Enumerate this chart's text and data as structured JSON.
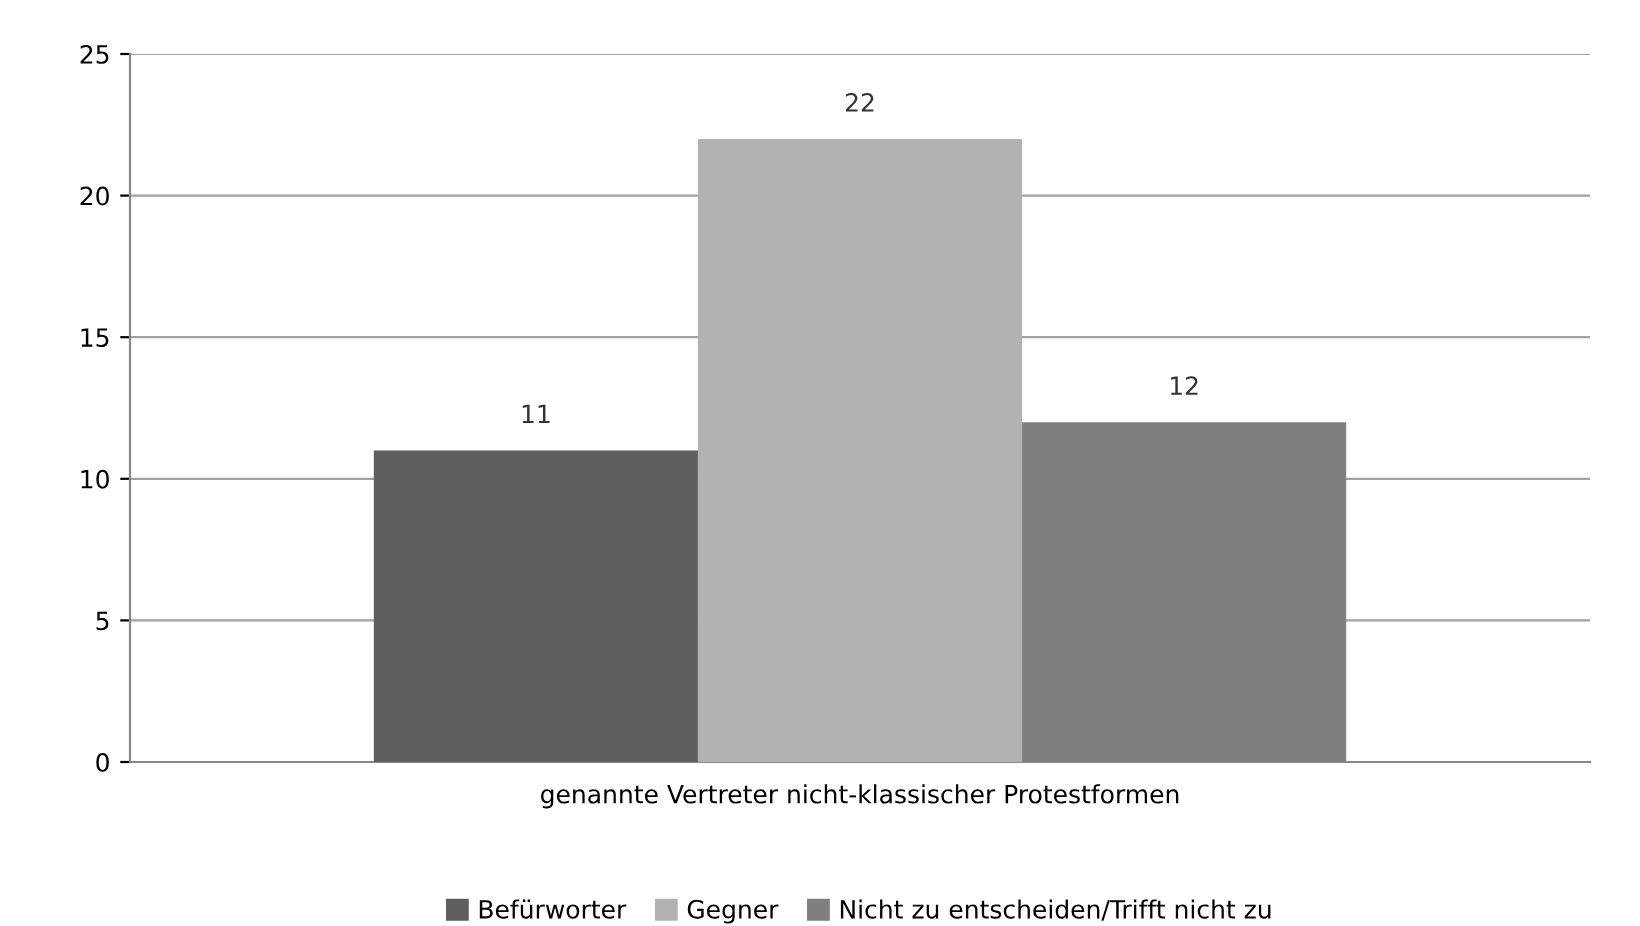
{
  "chart_data": {
    "type": "bar",
    "categories": [
      "genannte Vertreter nicht-klassischer Protestformen"
    ],
    "series": [
      {
        "name": "Befürworter",
        "color": "#5f5f5f",
        "values": [
          11
        ]
      },
      {
        "name": "Gegner",
        "color": "#b2b2b2",
        "values": [
          22
        ]
      },
      {
        "name": "Nicht zu entscheiden/Trifft nicht zu",
        "color": "#7f7f7f",
        "values": [
          12
        ]
      }
    ],
    "ylim": [
      0,
      25
    ],
    "yticks": [
      0,
      5,
      10,
      15,
      20,
      25
    ],
    "grid": "y",
    "legend": "bottom",
    "data_labels": true
  }
}
